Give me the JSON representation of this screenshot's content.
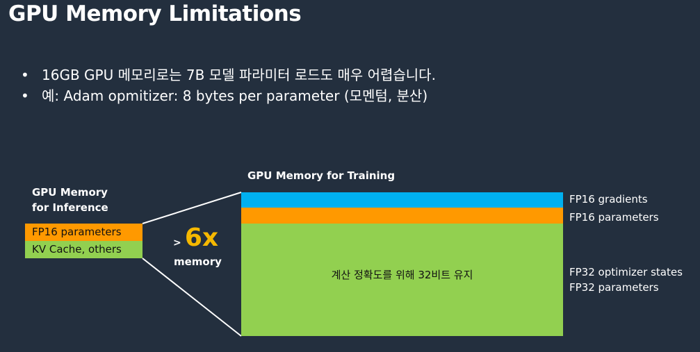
{
  "title": "GPU Memory Limitations",
  "bullets": [
    "16GB GPU 메모리로는 7B 모델 파라미터 로드도 매우 어렵습니다.",
    "예: Adam opmitizer: 8 bytes  per parameter (모멘텀, 분산)"
  ],
  "bullet_symbol": "•",
  "inference": {
    "title_line1": "GPU Memory",
    "title_line2": "for Inference",
    "blocks": [
      "FP16 parameters",
      "KV Cache, others"
    ]
  },
  "multiplier": {
    "prefix": ">",
    "value": "6x",
    "label": "memory"
  },
  "training": {
    "title": "GPU Memory for Training",
    "labels": [
      "FP16 gradients",
      "FP16 parameters",
      "FP32 optimizer states",
      "FP32 parameters"
    ],
    "green_text": "계산 정확도를 위해 32비트 유지"
  },
  "colors": {
    "background": "#232f3e",
    "blue": "#00b0f0",
    "orange": "#ff9900",
    "green": "#92d050",
    "accent": "#f5b800"
  }
}
